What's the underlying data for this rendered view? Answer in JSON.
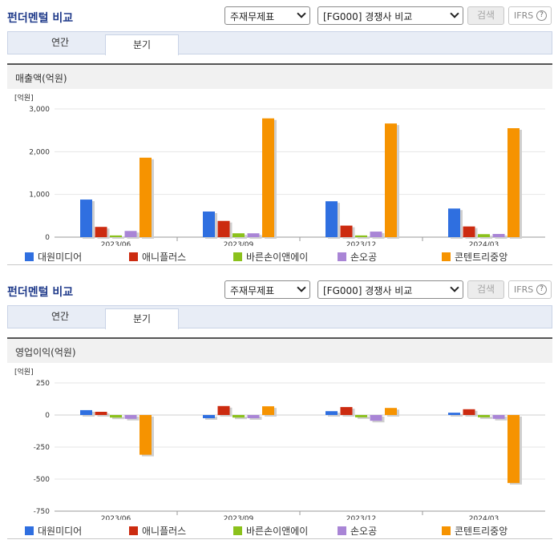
{
  "controls": {
    "title": "펀더멘털 비교",
    "select1": "주재무제표",
    "select2": "[FG000] 경쟁사 비교",
    "search": "검색",
    "ifrs": "IFRS",
    "help": "?"
  },
  "tabs": [
    "연간",
    "분기"
  ],
  "series_colors": [
    "#2f6fe0",
    "#cc2b10",
    "#8bc11c",
    "#a985d6",
    "#f69300"
  ],
  "legend": [
    "대원미디어",
    "애니플러스",
    "바른손이앤에이",
    "손오공",
    "콘텐트리중앙"
  ],
  "charts": [
    {
      "section": "매출액(억원)"
    },
    {
      "section": "영업이익(억원)"
    }
  ],
  "chart_data": [
    {
      "type": "bar",
      "title": "매출액(억원)",
      "unit": "[억원]",
      "categories": [
        "2023/06",
        "2023/09",
        "2023/12",
        "2024/03"
      ],
      "ylim": [
        0,
        3000
      ],
      "ticks": [
        0,
        1000,
        2000,
        3000
      ],
      "tick_labels": [
        "0",
        "1,000",
        "2,000",
        "3,000"
      ],
      "series": [
        {
          "name": "대원미디어",
          "values": [
            880,
            600,
            840,
            670
          ]
        },
        {
          "name": "애니플러스",
          "values": [
            240,
            380,
            270,
            250
          ]
        },
        {
          "name": "바른손이앤에이",
          "values": [
            40,
            90,
            40,
            70
          ]
        },
        {
          "name": "손오공",
          "values": [
            145,
            90,
            130,
            75
          ]
        },
        {
          "name": "콘텐트리중앙",
          "values": [
            1860,
            2780,
            2660,
            2550
          ]
        }
      ]
    },
    {
      "type": "bar",
      "title": "영업이익(억원)",
      "unit": "[억원]",
      "categories": [
        "2023/06",
        "2023/09",
        "2023/12",
        "2024/03"
      ],
      "ylim": [
        -750,
        250
      ],
      "ticks": [
        -750,
        -500,
        -250,
        0,
        250
      ],
      "tick_labels": [
        "-750",
        "-500",
        "-250",
        "0",
        "250"
      ],
      "series": [
        {
          "name": "대원미디어",
          "values": [
            38,
            -25,
            30,
            18
          ]
        },
        {
          "name": "애니플러스",
          "values": [
            25,
            70,
            62,
            45
          ]
        },
        {
          "name": "바른손이앤에이",
          "values": [
            -20,
            -20,
            -18,
            -18
          ]
        },
        {
          "name": "손오공",
          "values": [
            -30,
            -25,
            -45,
            -30
          ]
        },
        {
          "name": "콘텐트리중앙",
          "values": [
            -310,
            68,
            55,
            -530
          ]
        }
      ]
    }
  ]
}
